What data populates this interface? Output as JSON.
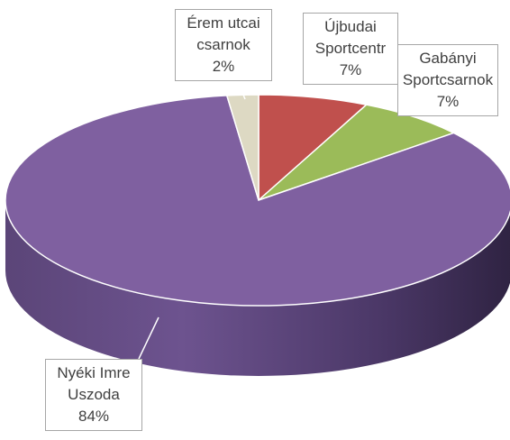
{
  "chart_data": {
    "type": "pie",
    "categories": [
      "Újbudai Sportcentr",
      "Gabányi Sportcsarnok",
      "Nyéki Imre Uszoda",
      "Érem utcai csarnok"
    ],
    "values": [
      7,
      7,
      84,
      2
    ],
    "value_labels": [
      "7%",
      "7%",
      "84%",
      "2%"
    ],
    "colors": [
      "#c0504d",
      "#9bbb59",
      "#7f60a0",
      "#ddd9c3"
    ]
  }
}
